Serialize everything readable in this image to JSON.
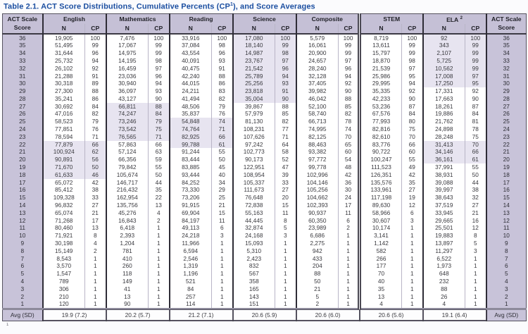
{
  "title": {
    "prefix": "Table 2.1.",
    "main": "  ACT Score Distributions, Cumulative Percents (CP",
    "cp_sup": "1",
    "suffix": "), and Score Averages"
  },
  "header": {
    "score_label_line1": "ACT Scale",
    "score_label_line2": "Score",
    "n_label": "N",
    "cp_label": "CP",
    "groups": [
      "English",
      "Mathematics",
      "Reading",
      "Science",
      "Composite",
      "STEM",
      "ELA"
    ],
    "ela_sup": "2"
  },
  "rows": [
    [
      36,
      "19,905",
      "100",
      "7,476",
      "100",
      "33,916",
      "100",
      "17,080",
      "100",
      "5,579",
      "100",
      "8,719",
      "100",
      "92",
      "100"
    ],
    [
      35,
      "51,495",
      "99",
      "17,067",
      "99",
      "37,084",
      "98",
      "18,140",
      "99",
      "16,061",
      "99",
      "13,611",
      "99",
      "343",
      "99"
    ],
    [
      34,
      "31,644",
      "96",
      "14,975",
      "99",
      "43,554",
      "96",
      "14,987",
      "98",
      "20,900",
      "99",
      "15,797",
      "99",
      "2,107",
      "99"
    ],
    [
      33,
      "25,732",
      "94",
      "14,195",
      "98",
      "40,091",
      "93",
      "23,767",
      "97",
      "24,657",
      "97",
      "18,870",
      "98",
      "5,725",
      "99"
    ],
    [
      32,
      "26,102",
      "92",
      "16,459",
      "97",
      "40,475",
      "91",
      "21,542",
      "96",
      "28,240",
      "96",
      "21,539",
      "97",
      "10,562",
      "99"
    ],
    [
      31,
      "21,288",
      "91",
      "23,036",
      "96",
      "42,240",
      "88",
      "25,789",
      "94",
      "32,128",
      "94",
      "25,986",
      "95",
      "17,008",
      "97"
    ],
    [
      30,
      "30,318",
      "89",
      "30,940",
      "94",
      "44,015",
      "86",
      "25,256",
      "93",
      "37,405",
      "92",
      "29,995",
      "94",
      "17,250",
      "95"
    ],
    [
      29,
      "27,300",
      "88",
      "36,097",
      "93",
      "24,211",
      "83",
      "23,818",
      "91",
      "39,982",
      "90",
      "35,335",
      "92",
      "17,331",
      "92"
    ],
    [
      28,
      "35,241",
      "86",
      "43,127",
      "90",
      "41,494",
      "82",
      "35,004",
      "90",
      "46,042",
      "88",
      "42,233",
      "90",
      "17,663",
      "90"
    ],
    [
      27,
      "30,692",
      "84",
      "66,811",
      "88",
      "48,506",
      "79",
      "39,867",
      "88",
      "52,100",
      "85",
      "53,236",
      "87",
      "18,261",
      "87"
    ],
    [
      26,
      "47,016",
      "82",
      "74,247",
      "84",
      "35,837",
      "76",
      "57,979",
      "85",
      "58,740",
      "82",
      "67,576",
      "84",
      "19,886",
      "84"
    ],
    [
      25,
      "58,523",
      "79",
      "73,246",
      "79",
      "54,848",
      "74",
      "81,130",
      "82",
      "66,713",
      "78",
      "77,993",
      "80",
      "21,762",
      "81"
    ],
    [
      24,
      "77,851",
      "76",
      "73,542",
      "75",
      "74,764",
      "71",
      "108,231",
      "77",
      "74,995",
      "74",
      "82,816",
      "75",
      "24,898",
      "78"
    ],
    [
      23,
      "78,594",
      "71",
      "76,565",
      "71",
      "82,925",
      "66",
      "107,626",
      "71",
      "82,125",
      "70",
      "82,610",
      "70",
      "28,248",
      "75"
    ],
    [
      22,
      "77,879",
      "66",
      "57,863",
      "66",
      "99,788",
      "61",
      "97,242",
      "64",
      "88,463",
      "65",
      "83,776",
      "66",
      "31,413",
      "70"
    ],
    [
      21,
      "100,924",
      "62",
      "57,124",
      "63",
      "91,244",
      "55",
      "102,773",
      "58",
      "93,382",
      "60",
      "90,722",
      "60",
      "34,146",
      "66"
    ],
    [
      20,
      "90,891",
      "56",
      "66,356",
      "59",
      "83,444",
      "50",
      "90,173",
      "52",
      "97,772",
      "54",
      "100,247",
      "55",
      "36,161",
      "61"
    ],
    [
      19,
      "71,670",
      "50",
      "79,842",
      "55",
      "83,885",
      "45",
      "122,951",
      "47",
      "99,778",
      "48",
      "111,523",
      "49",
      "37,991",
      "55"
    ],
    [
      18,
      "61,633",
      "46",
      "105,674",
      "50",
      "93,444",
      "40",
      "108,954",
      "39",
      "102,996",
      "42",
      "126,351",
      "42",
      "38,931",
      "50"
    ],
    [
      17,
      "65,072",
      "42",
      "146,717",
      "44",
      "84,252",
      "34",
      "105,337",
      "33",
      "104,146",
      "36",
      "135,576",
      "35",
      "39,088",
      "44"
    ],
    [
      16,
      "85,412",
      "38",
      "216,432",
      "35",
      "73,330",
      "29",
      "111,673",
      "27",
      "105,256",
      "30",
      "133,961",
      "27",
      "39,997",
      "38"
    ],
    [
      15,
      "109,328",
      "33",
      "162,954",
      "22",
      "73,206",
      "25",
      "76,648",
      "20",
      "104,662",
      "24",
      "117,198",
      "19",
      "38,643",
      "32"
    ],
    [
      14,
      "96,832",
      "27",
      "135,756",
      "13",
      "91,915",
      "21",
      "72,838",
      "15",
      "102,393",
      "17",
      "89,630",
      "12",
      "37,519",
      "27"
    ],
    [
      13,
      "65,074",
      "21",
      "45,276",
      "4",
      "69,904",
      "15",
      "55,163",
      "11",
      "90,937",
      "11",
      "58,966",
      "6",
      "33,945",
      "21"
    ],
    [
      12,
      "71,268",
      "17",
      "16,843",
      "2",
      "84,197",
      "11",
      "44,445",
      "8",
      "60,350",
      "6",
      "30,607",
      "3",
      "29,665",
      "16"
    ],
    [
      11,
      "80,460",
      "13",
      "6,418",
      "1",
      "49,113",
      "6",
      "32,874",
      "5",
      "23,989",
      "2",
      "10,174",
      "1",
      "25,501",
      "12"
    ],
    [
      10,
      "71,921",
      "8",
      "2,393",
      "1",
      "24,218",
      "3",
      "24,168",
      "3",
      "6,686",
      "1",
      "3,141",
      "1",
      "19,883",
      "8"
    ],
    [
      9,
      "30,198",
      "4",
      "1,204",
      "1",
      "11,966",
      "1",
      "15,093",
      "1",
      "2,275",
      "1",
      "1,142",
      "1",
      "13,897",
      "5"
    ],
    [
      8,
      "15,149",
      "2",
      "781",
      "1",
      "6,594",
      "1",
      "5,310",
      "1",
      "942",
      "1",
      "582",
      "1",
      "11,297",
      "3"
    ],
    [
      7,
      "8,543",
      "1",
      "410",
      "1",
      "2,546",
      "1",
      "2,423",
      "1",
      "433",
      "1",
      "266",
      "1",
      "6,522",
      "1"
    ],
    [
      6,
      "3,570",
      "1",
      "260",
      "1",
      "1,319",
      "1",
      "832",
      "1",
      "204",
      "1",
      "177",
      "1",
      "1,973",
      "1"
    ],
    [
      5,
      "1,547",
      "1",
      "118",
      "1",
      "1,196",
      "1",
      "567",
      "1",
      "88",
      "1",
      "70",
      "1",
      "648",
      "1"
    ],
    [
      4,
      "789",
      "1",
      "149",
      "1",
      "521",
      "1",
      "358",
      "1",
      "50",
      "1",
      "40",
      "1",
      "232",
      "1"
    ],
    [
      3,
      "306",
      "1",
      "41",
      "1",
      "84",
      "1",
      "165",
      "1",
      "21",
      "1",
      "35",
      "1",
      "88",
      "1"
    ],
    [
      2,
      "210",
      "1",
      "13",
      "1",
      "257",
      "1",
      "143",
      "1",
      "5",
      "1",
      "13",
      "1",
      "26",
      "1"
    ],
    [
      1,
      "120",
      "1",
      "90",
      "1",
      "114",
      "1",
      "151",
      "1",
      "2",
      "1",
      "4",
      "1",
      "4",
      "1"
    ]
  ],
  "shaded_bands": {
    "english": [
      [
        22,
        18
      ]
    ],
    "mathematics": [
      [
        27,
        23
      ]
    ],
    "reading": [
      [
        25,
        22
      ]
    ],
    "science": [
      [
        36,
        28
      ]
    ],
    "composite": [],
    "stem": [],
    "ela": [
      [
        36,
        30
      ],
      [
        22,
        20
      ]
    ]
  },
  "footer": {
    "label_left": "Avg (SD)",
    "label_right": "Avg (SD)",
    "averages": [
      "19.9 (7.2)",
      "20.2 (5.7)",
      "21.2 (7.1)",
      "20.6 (5.9)",
      "20.6 (6.0)",
      "20.6 (5.6)",
      "19.1 (6.4)"
    ]
  },
  "footnote_marker": "1",
  "colors": {
    "title_blue": "#1c4fa1",
    "header_lavender": "#c5c0d6",
    "score_column_lavender": "#c8c3d9",
    "band_tint": "#e7e4f0"
  }
}
